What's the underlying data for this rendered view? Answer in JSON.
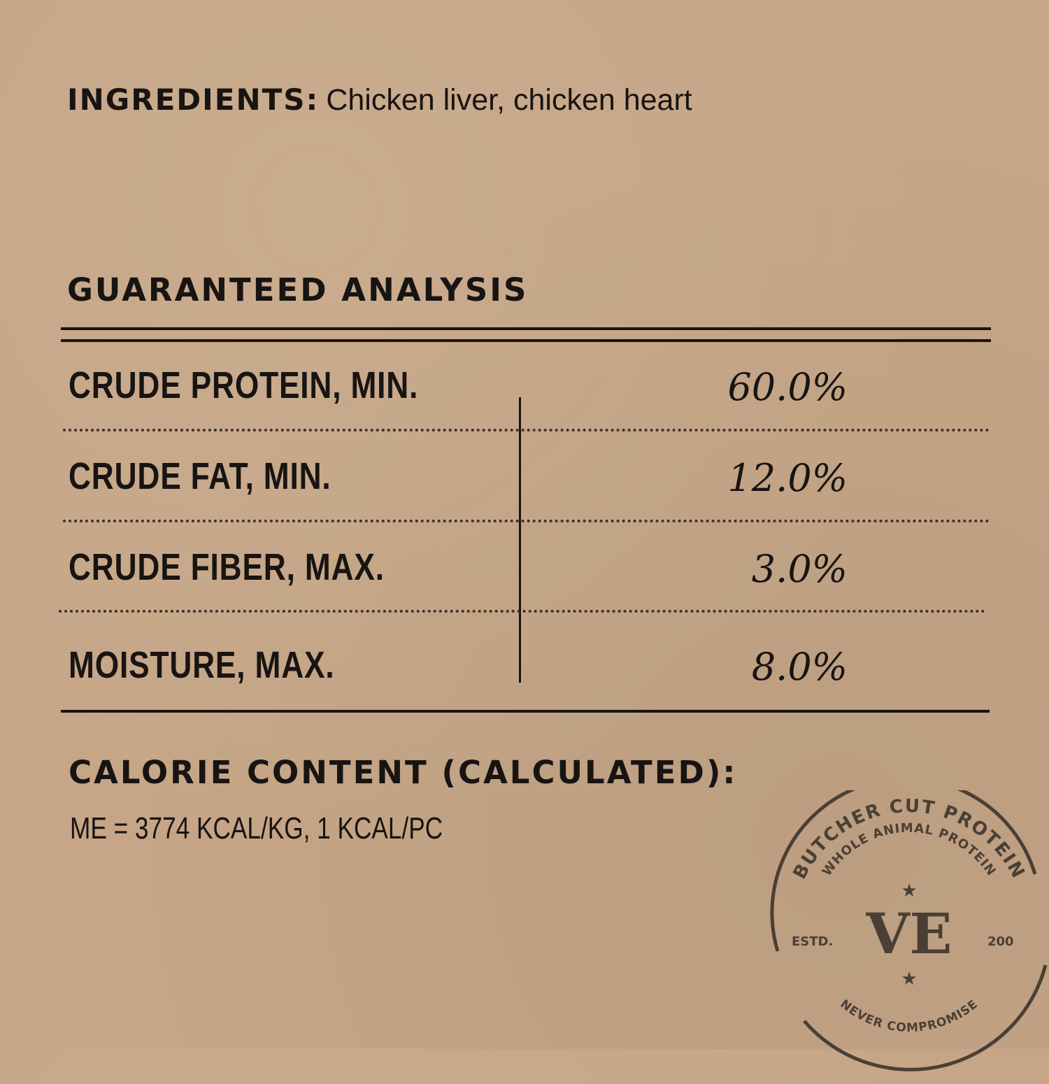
{
  "ingredients": {
    "label": "INGREDIENTS:",
    "value": "Chicken liver, chicken heart"
  },
  "analysis": {
    "title": "GUARANTEED ANALYSIS",
    "rows": [
      {
        "label": "CRUDE PROTEIN, MIN.",
        "value": "60.0%"
      },
      {
        "label": "CRUDE FAT, MIN.",
        "value": "12.0%"
      },
      {
        "label": "CRUDE FIBER, MAX.",
        "value": "3.0%"
      },
      {
        "label": "MOISTURE, MAX.",
        "value": "8.0%"
      }
    ]
  },
  "calorie": {
    "title": "CALORIE CONTENT (CALCULATED):",
    "value": "ME = 3774 KCAL/KG, 1 KCAL/PC"
  },
  "stamp": {
    "outer": "BUTCHER CUT PROTEIN",
    "inner": "WHOLE ANIMAL PROTEIN",
    "bottom": "NEVER COMPROMISE",
    "estd": "ESTD.",
    "year": "200",
    "monogram": "VE"
  },
  "colors": {
    "background": "#c6a687",
    "ink": "#181412",
    "stamp_ink": "#4a3f35"
  }
}
